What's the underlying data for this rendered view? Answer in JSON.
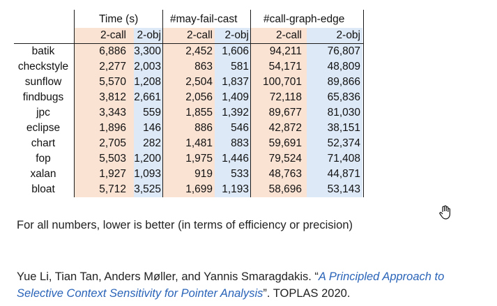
{
  "headers": {
    "groups": [
      "Time (s)",
      "#may-fail-cast",
      "#call-graph-edge"
    ],
    "sub": [
      "2-call",
      "2-obj",
      "2-call",
      "2-obj",
      "2-call",
      "2-obj"
    ]
  },
  "rows": [
    {
      "name": "batik",
      "values": [
        "6,886",
        "3,300",
        "2,452",
        "1,606",
        "94,211",
        "76,807"
      ]
    },
    {
      "name": "checkstyle",
      "values": [
        "2,277",
        "2,003",
        "863",
        "581",
        "54,171",
        "48,809"
      ]
    },
    {
      "name": "sunflow",
      "values": [
        "5,570",
        "1,208",
        "2,504",
        "1,837",
        "100,701",
        "89,866"
      ]
    },
    {
      "name": "findbugs",
      "values": [
        "3,812",
        "2,661",
        "2,056",
        "1,409",
        "72,118",
        "65,836"
      ]
    },
    {
      "name": "jpc",
      "values": [
        "3,343",
        "559",
        "1,855",
        "1,392",
        "89,677",
        "81,030"
      ]
    },
    {
      "name": "eclipse",
      "values": [
        "1,896",
        "146",
        "886",
        "546",
        "42,872",
        "38,151"
      ]
    },
    {
      "name": "chart",
      "values": [
        "2,705",
        "282",
        "1,481",
        "883",
        "59,691",
        "52,374"
      ]
    },
    {
      "name": "fop",
      "values": [
        "5,503",
        "1,200",
        "1,975",
        "1,446",
        "79,524",
        "71,408"
      ]
    },
    {
      "name": "xalan",
      "values": [
        "1,927",
        "1,093",
        "919",
        "533",
        "48,763",
        "44,871"
      ]
    },
    {
      "name": "bloat",
      "values": [
        "5,712",
        "3,525",
        "1,699",
        "1,193",
        "58,696",
        "53,143"
      ]
    }
  ],
  "note": "For all numbers, lower is better (in terms of efficiency or precision)",
  "citation": {
    "authors": "Yue Li, Tian Tan, Anders Møller, and Yannis Smaragdakis. “",
    "title": "A Principled Approach to Selective Context Sensitivity for Pointer Analysis",
    "venue": "”. TOPLAS 2020."
  },
  "icons": {
    "cursor": "hand-pointer-icon"
  }
}
